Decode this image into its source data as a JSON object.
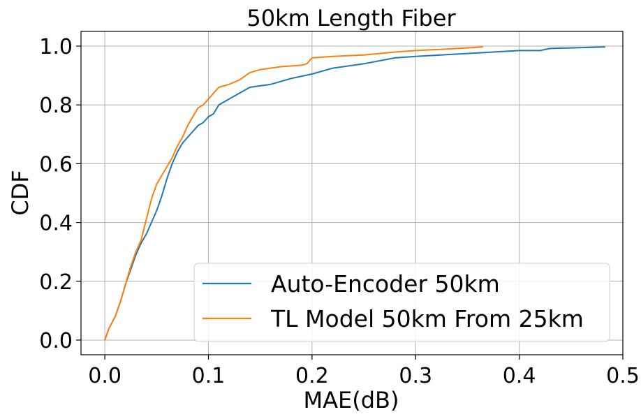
{
  "chart_data": {
    "type": "line",
    "title": "50km Length Fiber",
    "xlabel": "MAE(dB)",
    "ylabel": "CDF",
    "xlim": [
      -0.023,
      0.5
    ],
    "ylim": [
      -0.05,
      1.05
    ],
    "xticks": [
      0.0,
      0.1,
      0.2,
      0.3,
      0.4,
      0.5
    ],
    "xtick_labels": [
      "0.0",
      "0.1",
      "0.2",
      "0.3",
      "0.4",
      "0.5"
    ],
    "yticks": [
      0.0,
      0.2,
      0.4,
      0.6,
      0.8,
      1.0
    ],
    "ytick_labels": [
      "0.0",
      "0.2",
      "0.4",
      "0.6",
      "0.8",
      "1.0"
    ],
    "grid": true,
    "legend_position": "lower-right",
    "series": [
      {
        "name": "Auto-Encoder 50km",
        "color": "#1f77b4",
        "x": [
          0.0,
          0.004,
          0.01,
          0.015,
          0.02,
          0.025,
          0.03,
          0.035,
          0.04,
          0.045,
          0.05,
          0.055,
          0.06,
          0.065,
          0.07,
          0.075,
          0.08,
          0.085,
          0.09,
          0.095,
          0.1,
          0.105,
          0.11,
          0.12,
          0.13,
          0.14,
          0.15,
          0.16,
          0.18,
          0.2,
          0.22,
          0.25,
          0.28,
          0.3,
          0.35,
          0.4,
          0.42,
          0.43,
          0.483
        ],
        "y": [
          0.0,
          0.04,
          0.08,
          0.13,
          0.19,
          0.24,
          0.29,
          0.33,
          0.36,
          0.4,
          0.44,
          0.49,
          0.55,
          0.6,
          0.64,
          0.67,
          0.69,
          0.71,
          0.73,
          0.74,
          0.76,
          0.77,
          0.8,
          0.82,
          0.84,
          0.86,
          0.865,
          0.87,
          0.89,
          0.905,
          0.925,
          0.94,
          0.96,
          0.965,
          0.975,
          0.985,
          0.985,
          0.992,
          0.997
        ]
      },
      {
        "name": "TL Model 50km From 25km",
        "color": "#ff7f0e",
        "x": [
          0.0,
          0.004,
          0.01,
          0.015,
          0.02,
          0.025,
          0.03,
          0.035,
          0.04,
          0.045,
          0.05,
          0.055,
          0.06,
          0.065,
          0.07,
          0.075,
          0.08,
          0.085,
          0.09,
          0.095,
          0.1,
          0.105,
          0.11,
          0.12,
          0.13,
          0.14,
          0.15,
          0.17,
          0.19,
          0.195,
          0.2,
          0.22,
          0.25,
          0.28,
          0.3,
          0.33,
          0.365
        ],
        "y": [
          0.0,
          0.04,
          0.08,
          0.13,
          0.19,
          0.25,
          0.3,
          0.34,
          0.41,
          0.48,
          0.53,
          0.56,
          0.59,
          0.62,
          0.66,
          0.69,
          0.73,
          0.76,
          0.79,
          0.8,
          0.82,
          0.84,
          0.86,
          0.87,
          0.885,
          0.91,
          0.92,
          0.93,
          0.935,
          0.94,
          0.96,
          0.965,
          0.97,
          0.98,
          0.985,
          0.99,
          0.997
        ]
      }
    ]
  }
}
